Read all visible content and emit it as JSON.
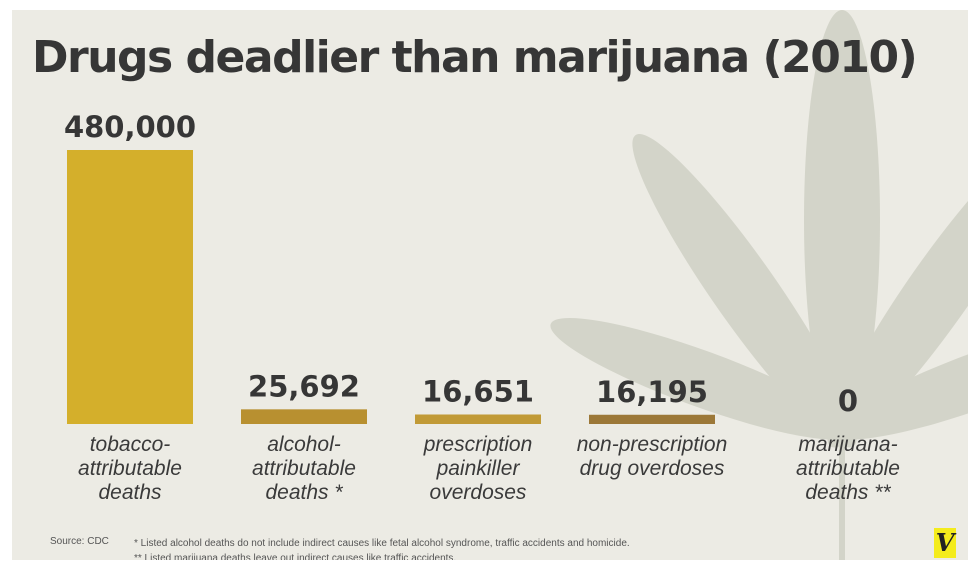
{
  "title": "Drugs deadlier than marijuana (2010)",
  "chart_data": {
    "type": "bar",
    "title": "Drugs deadlier than marijuana (2010)",
    "categories": [
      [
        "tobacco-",
        "attributable",
        "deaths"
      ],
      [
        "alcohol-",
        "attributable",
        "deaths *"
      ],
      [
        "prescription",
        "painkiller",
        "overdoses"
      ],
      [
        "non-prescription",
        "drug overdoses"
      ],
      [
        "marijuana-",
        "attributable",
        "deaths **"
      ]
    ],
    "values": [
      480000,
      25692,
      16651,
      16195,
      0
    ],
    "value_labels": [
      "480,000",
      "25,692",
      "16,651",
      "16,195",
      "0"
    ],
    "colors": [
      "#d4af2b",
      "#b89030",
      "#c19a36",
      "#9c7838",
      "#9c7838"
    ],
    "ylim": [
      0,
      480000
    ],
    "grid": false
  },
  "footer": {
    "source": "Source: CDC",
    "notes": [
      "* Listed alcohol deaths do not include indirect causes like fetal alcohol syndrome, traffic accidents and homicide.",
      "** Listed marijuana deaths leave out indirect causes like traffic accidents."
    ],
    "logo": "V"
  },
  "icons": {
    "background": "cannabis-leaf-watermark",
    "logo": "vox-logo"
  }
}
